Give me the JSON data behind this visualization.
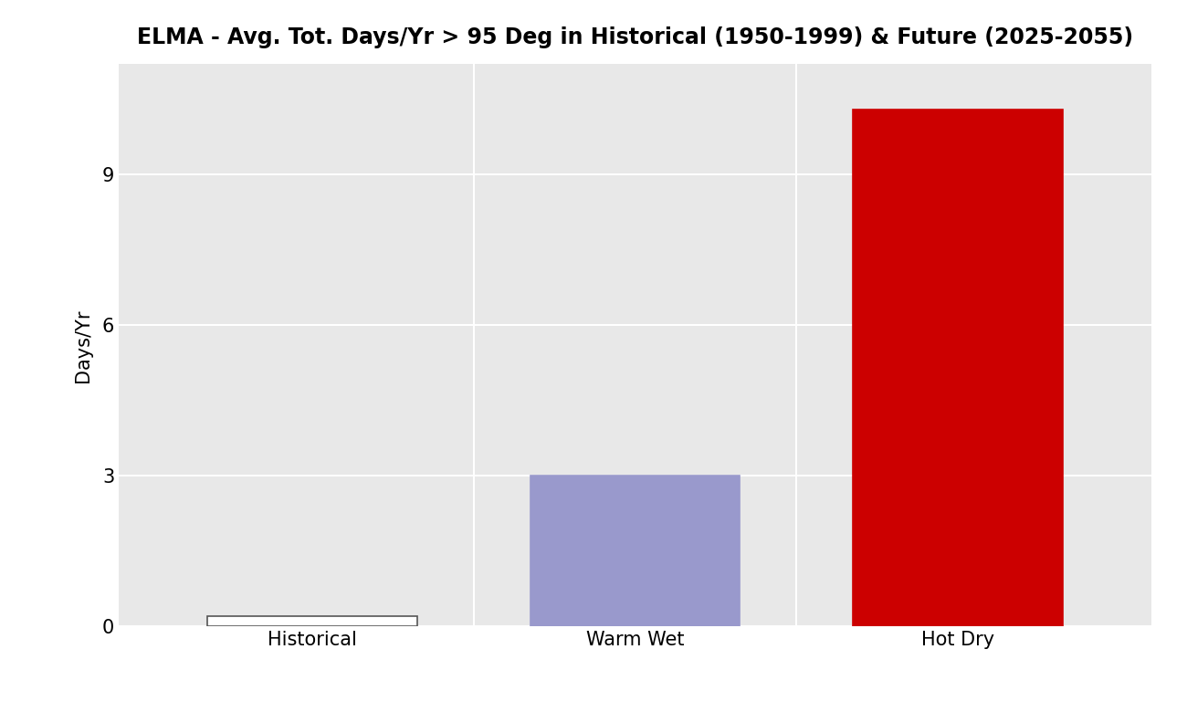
{
  "title": "ELMA - Avg. Tot. Days/Yr > 95 Deg in Historical (1950-1999) & Future (2025-2055)",
  "categories": [
    "Historical",
    "Warm Wet",
    "Hot Dry"
  ],
  "values": [
    0.2,
    3.0,
    10.3
  ],
  "bar_colors": [
    "#ffffff",
    "#9999cc",
    "#cc0000"
  ],
  "bar_edgecolors": [
    "#555555",
    "#9999cc",
    "#cc0000"
  ],
  "ylabel": "Days/Yr",
  "ylim": [
    0,
    11.2
  ],
  "yticks": [
    0,
    3,
    6,
    9
  ],
  "plot_bg_color": "#e8e8e8",
  "fig_bg_color": "#ffffff",
  "grid_color": "#ffffff",
  "vline_color": "#ffffff",
  "title_fontsize": 17,
  "tick_fontsize": 15,
  "label_fontsize": 15,
  "bar_width": 0.65,
  "bar_positions": [
    0,
    1,
    2
  ],
  "panel_vline_positions": [
    0.5,
    1.5
  ]
}
